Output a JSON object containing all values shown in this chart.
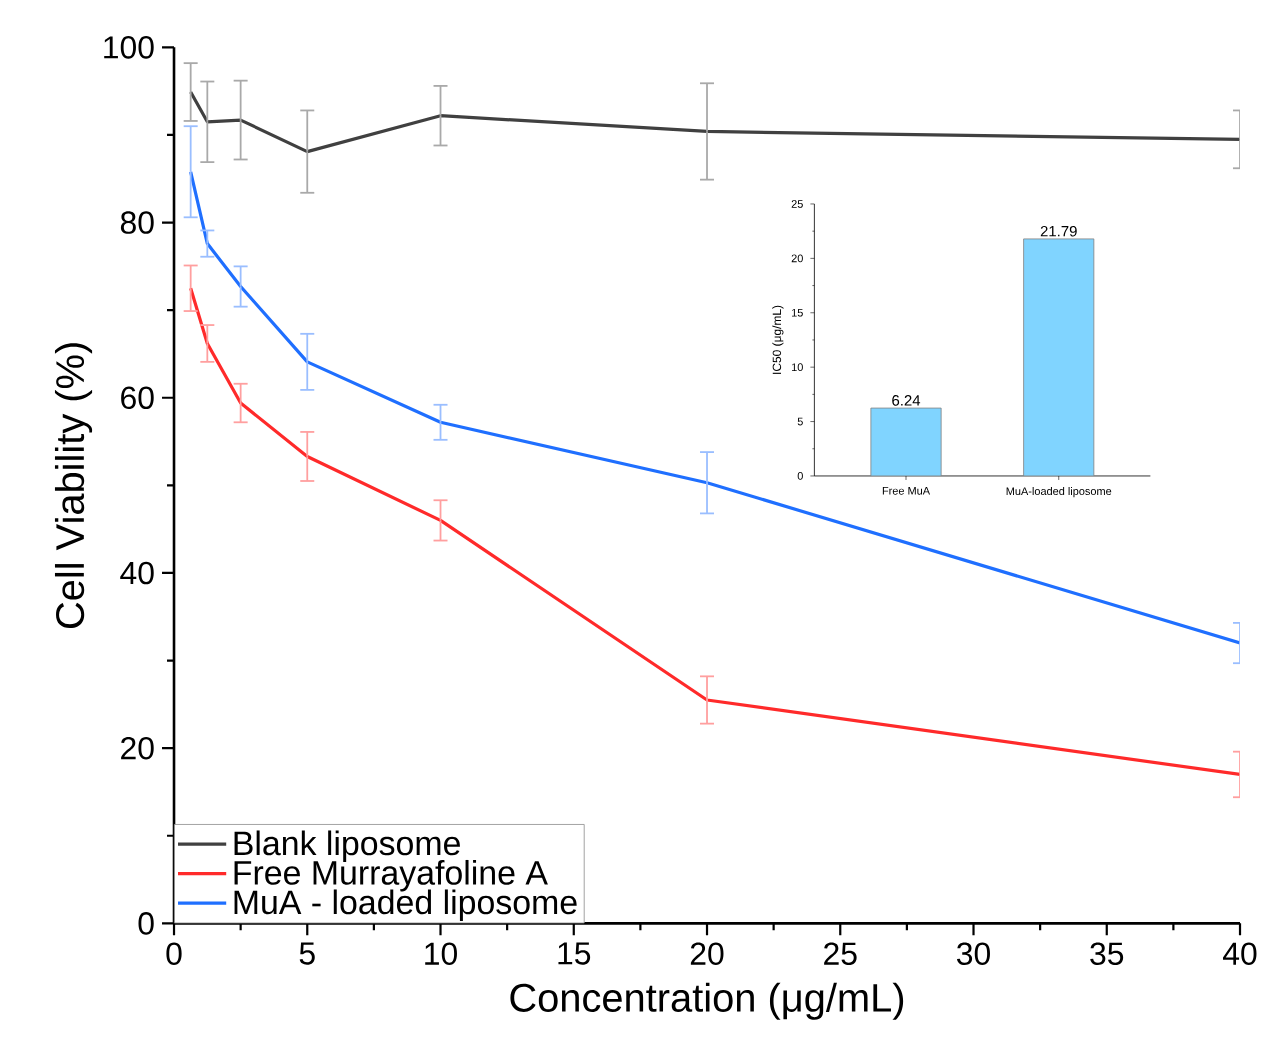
{
  "chart_data": [
    {
      "type": "line",
      "xlabel": "Concentration (μg/mL)",
      "ylabel": "Cell Viability (%)",
      "x": [
        0.625,
        1.25,
        2.5,
        5,
        10,
        20,
        40
      ],
      "xlim": [
        0,
        40
      ],
      "ylim": [
        0,
        100
      ],
      "xticks": [
        0,
        5,
        10,
        15,
        20,
        25,
        30,
        35,
        40
      ],
      "yticks": [
        0,
        20,
        40,
        60,
        80,
        100
      ],
      "legend": "bottom left",
      "grid": false,
      "series": [
        {
          "name": "Blank liposome",
          "color": "#404040",
          "values": [
            94.9,
            91.5,
            91.7,
            88.1,
            92.2,
            90.4,
            89.5
          ],
          "errors": [
            3.3,
            4.6,
            4.5,
            4.7,
            3.4,
            5.5,
            3.3
          ]
        },
        {
          "name": "Free Murrayafoline A",
          "color": "#ff2a2a",
          "values": [
            72.5,
            66.2,
            59.4,
            53.3,
            46.0,
            25.5,
            17.0
          ],
          "errors": [
            2.6,
            2.1,
            2.2,
            2.8,
            2.3,
            2.7,
            2.6
          ]
        },
        {
          "name": "MuA - loaded liposome",
          "color": "#1f6fff",
          "values": [
            85.8,
            77.6,
            72.7,
            64.1,
            57.2,
            50.3,
            32.0
          ],
          "errors": [
            5.2,
            1.5,
            2.3,
            3.2,
            2.0,
            3.5,
            2.3
          ]
        }
      ]
    },
    {
      "type": "bar",
      "ylabel": "IC50 (μg/mL)",
      "categories": [
        "Free MuA",
        "MuA-loaded liposome"
      ],
      "values": [
        6.24,
        21.79
      ],
      "color": "#80d4ff",
      "ylim": [
        0,
        25
      ],
      "yticks": [
        0,
        5,
        10,
        15,
        20,
        25
      ],
      "data_labels": true
    }
  ]
}
